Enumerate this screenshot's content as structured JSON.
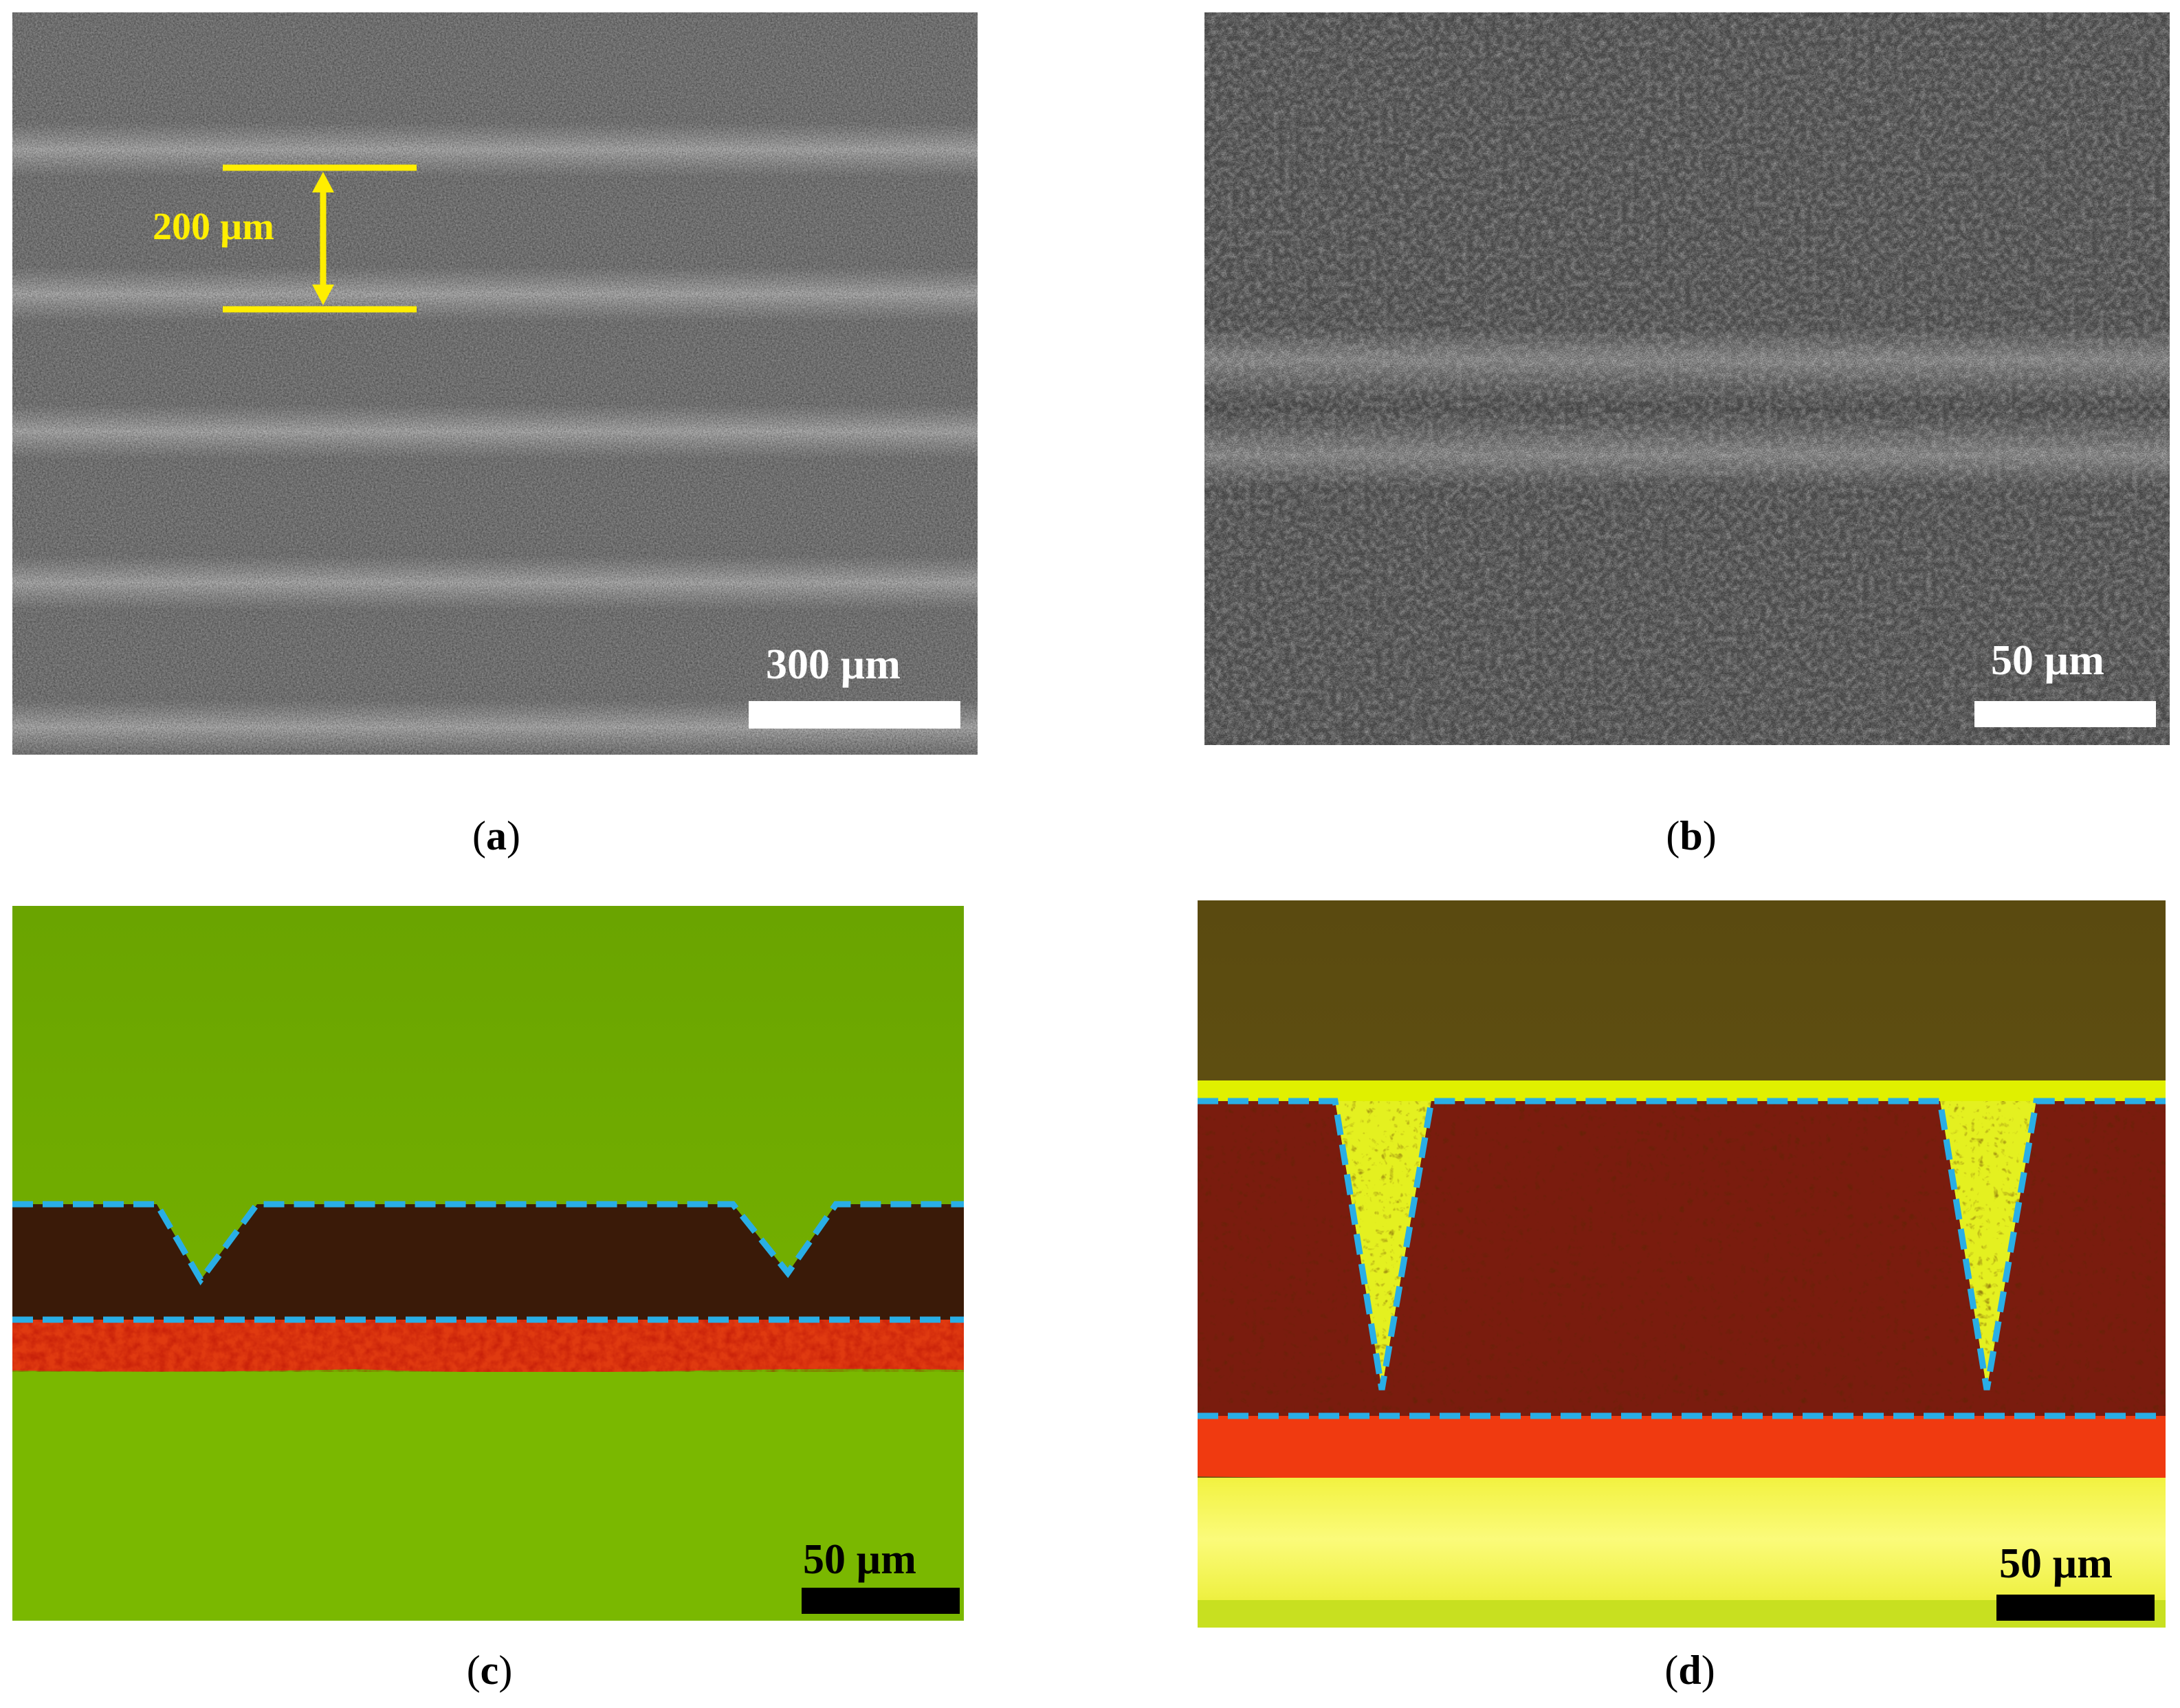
{
  "panels": {
    "a": {
      "caption_open": "(",
      "caption_letter": "a",
      "caption_close": ")",
      "scale_label": "300 µm",
      "dimension_label": "200 µm"
    },
    "b": {
      "caption_open": "(",
      "caption_letter": "b",
      "caption_close": ")",
      "scale_label": "50 µm"
    },
    "c": {
      "caption_open": "(",
      "caption_letter": "c",
      "caption_close": ")",
      "scale_label": "50 µm"
    },
    "d": {
      "caption_open": "(",
      "caption_letter": "d",
      "caption_close": ")",
      "scale_label": "50 µm"
    }
  },
  "colors": {
    "annotation_yellow": "#ffee00",
    "outline_blue": "#29aee6",
    "fluorescent_green": "#7cb800",
    "fluorescent_red": "#e83010",
    "scalebar_white": "#ffffff",
    "scalebar_black": "#000000"
  }
}
